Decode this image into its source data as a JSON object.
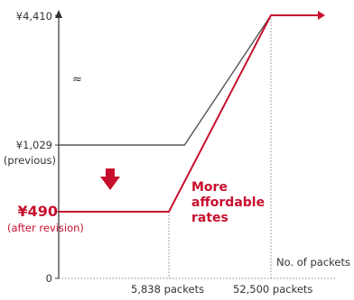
{
  "chart_data": {
    "type": "line",
    "title": "",
    "xlabel": "No. of packets",
    "ylabel": "",
    "grid": false,
    "legend": "none",
    "axis_break_y": true,
    "x_ticks": [
      {
        "value": 5838,
        "label": "5,838 packets"
      },
      {
        "value": 52500,
        "label": "52,500 packets"
      }
    ],
    "y_ticks": [
      {
        "value": 0,
        "label": "0"
      },
      {
        "value": 490,
        "label": "¥490",
        "sublabel": "(after revision)",
        "highlight": true
      },
      {
        "value": 1029,
        "label": "¥1,029",
        "sublabel": "(previous)"
      },
      {
        "value": 4410,
        "label": "¥4,410"
      }
    ],
    "series": [
      {
        "color": "#555555",
        "points": [
          [
            0,
            1029
          ],
          [
            13000,
            1029
          ],
          [
            52500,
            4410
          ],
          [
            56000,
            4410
          ]
        ]
      },
      {
        "color": "#c8102e",
        "points": [
          [
            0,
            490
          ],
          [
            5838,
            490
          ],
          [
            52500,
            4410
          ],
          [
            60000,
            4410
          ]
        ]
      }
    ],
    "annotations": [
      {
        "text": "More affordable rates",
        "color": "#c8102e"
      }
    ],
    "colors": {
      "accent": "#c8102e",
      "previous_line": "#555555",
      "axis": "#333333",
      "guide": "#888888"
    }
  }
}
